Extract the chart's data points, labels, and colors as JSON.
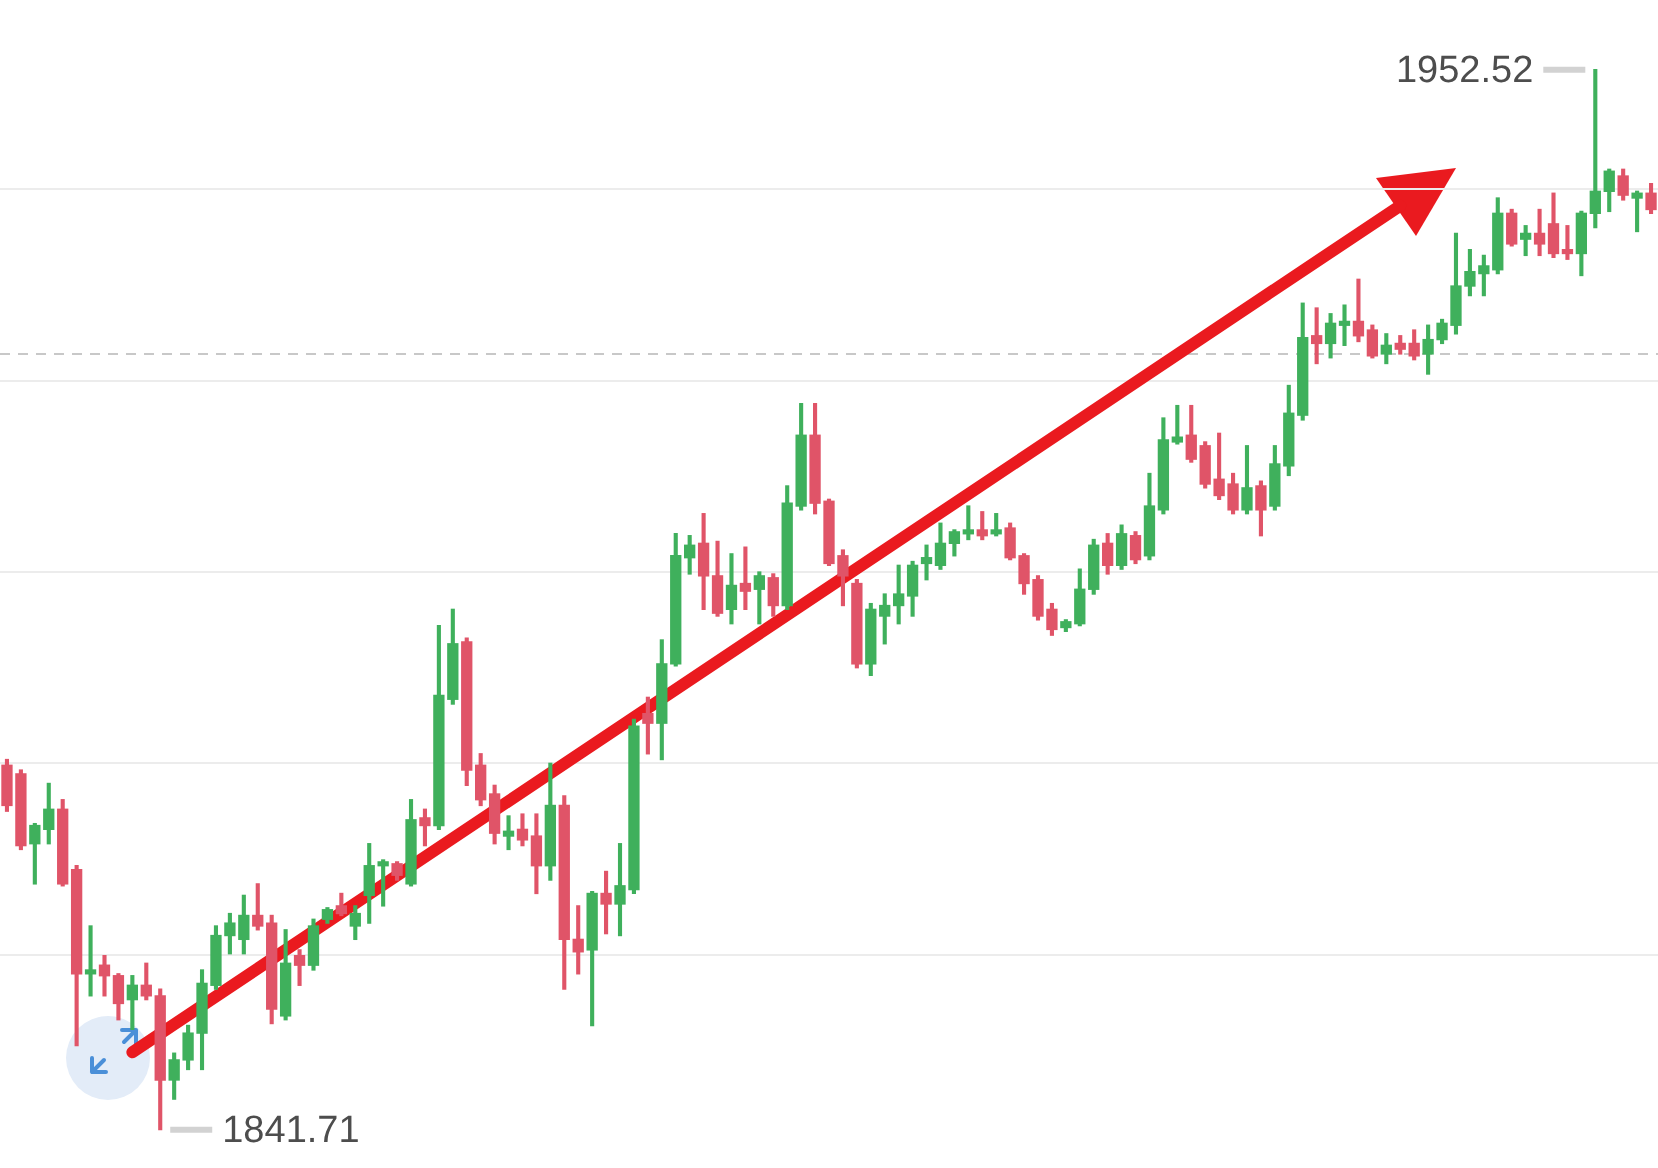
{
  "chart_data": {
    "type": "candlestick",
    "categories": [
      null,
      null,
      null,
      null,
      null,
      null,
      null,
      null,
      null,
      null,
      null,
      null,
      null,
      null,
      null,
      null,
      null,
      null,
      null,
      null,
      null,
      null,
      null,
      null,
      null,
      null,
      null,
      null,
      null,
      null,
      null,
      null,
      null,
      null,
      null,
      null,
      null,
      null,
      null,
      null,
      null,
      null,
      null,
      null,
      null,
      null,
      null,
      null,
      null,
      null,
      null,
      null,
      null,
      null,
      null,
      null,
      null,
      null,
      null,
      null,
      null,
      null,
      null,
      null,
      null,
      null,
      null,
      null,
      null,
      null,
      null,
      null,
      null,
      null,
      null,
      null,
      null,
      null,
      null,
      null,
      null,
      null,
      null,
      null,
      null,
      null,
      null,
      null,
      null,
      null,
      null,
      null,
      null,
      null,
      null,
      null,
      null,
      null,
      null,
      null,
      null,
      null,
      null,
      null,
      null,
      null,
      null,
      null,
      null,
      null,
      null,
      null,
      null,
      null,
      null,
      null,
      null,
      null,
      null
    ],
    "ohlc": [
      [
        1879.8,
        1880.4,
        1875.0,
        1875.6
      ],
      [
        1878.9,
        1879.3,
        1871.0,
        1871.4
      ],
      [
        1871.6,
        1873.7,
        1867.4,
        1873.5
      ],
      [
        1873.1,
        1877.9,
        1871.6,
        1875.2
      ],
      [
        1875.2,
        1876.2,
        1867.2,
        1867.4
      ],
      [
        1868.9,
        1869.3,
        1850.5,
        1858.0
      ],
      [
        1858.0,
        1863.0,
        1855.7,
        1858.4
      ],
      [
        1858.9,
        1859.9,
        1855.7,
        1857.8
      ],
      [
        1857.8,
        1858.0,
        1853.2,
        1854.9
      ],
      [
        1855.3,
        1857.8,
        1852.2,
        1856.8
      ],
      [
        1856.8,
        1859.1,
        1855.3,
        1855.7
      ],
      [
        1855.7,
        1856.4,
        1841.71,
        1846.9
      ],
      [
        1846.9,
        1849.7,
        1844.9,
        1849.0
      ],
      [
        1849.0,
        1852.6,
        1848.0,
        1851.8
      ],
      [
        1851.8,
        1858.4,
        1848.0,
        1857.0
      ],
      [
        1856.8,
        1863.0,
        1856.4,
        1862.0
      ],
      [
        1862.0,
        1864.3,
        1860.1,
        1863.3
      ],
      [
        1861.6,
        1866.2,
        1860.1,
        1864.1
      ],
      [
        1864.1,
        1867.4,
        1862.6,
        1863.0
      ],
      [
        1863.3,
        1864.1,
        1852.8,
        1854.3
      ],
      [
        1853.6,
        1862.6,
        1853.2,
        1859.1
      ],
      [
        1859.9,
        1860.5,
        1856.8,
        1858.9
      ],
      [
        1858.9,
        1863.7,
        1858.4,
        1863.0
      ],
      [
        1863.7,
        1864.9,
        1863.3,
        1864.7
      ],
      [
        1865.1,
        1866.4,
        1864.1,
        1864.3
      ],
      [
        1863.0,
        1865.1,
        1861.6,
        1864.3
      ],
      [
        1866.2,
        1871.6,
        1863.3,
        1869.3
      ],
      [
        1869.3,
        1869.9,
        1865.1,
        1869.7
      ],
      [
        1869.5,
        1869.7,
        1867.8,
        1868.3
      ],
      [
        1867.4,
        1876.2,
        1867.2,
        1874.1
      ],
      [
        1874.3,
        1875.2,
        1871.4,
        1873.5
      ],
      [
        1873.5,
        1894.4,
        1873.1,
        1887.1
      ],
      [
        1886.7,
        1896.1,
        1886.2,
        1892.5
      ],
      [
        1892.7,
        1893.1,
        1877.7,
        1879.3
      ],
      [
        1879.8,
        1881.0,
        1875.6,
        1876.2
      ],
      [
        1876.8,
        1877.7,
        1871.6,
        1872.7
      ],
      [
        1872.4,
        1874.5,
        1871.0,
        1872.9
      ],
      [
        1873.1,
        1874.7,
        1871.4,
        1872.0
      ],
      [
        1872.4,
        1874.7,
        1866.4,
        1869.3
      ],
      [
        1869.3,
        1880.0,
        1867.8,
        1875.6
      ],
      [
        1875.6,
        1876.6,
        1856.4,
        1861.6
      ],
      [
        1861.6,
        1865.1,
        1858.0,
        1860.3
      ],
      [
        1860.5,
        1866.6,
        1852.6,
        1866.4
      ],
      [
        1866.4,
        1868.7,
        1862.2,
        1865.3
      ],
      [
        1865.3,
        1871.6,
        1862.0,
        1867.2
      ],
      [
        1866.8,
        1884.6,
        1866.4,
        1883.9
      ],
      [
        1885.2,
        1886.9,
        1881.0,
        1884.2
      ],
      [
        1884.2,
        1892.9,
        1880.4,
        1890.4
      ],
      [
        1890.4,
        1904.0,
        1890.2,
        1901.7
      ],
      [
        1901.5,
        1903.8,
        1899.8,
        1902.8
      ],
      [
        1903.0,
        1906.1,
        1896.1,
        1899.6
      ],
      [
        1899.6,
        1903.2,
        1895.4,
        1895.7
      ],
      [
        1896.1,
        1901.9,
        1894.6,
        1898.6
      ],
      [
        1898.8,
        1902.6,
        1896.1,
        1898.0
      ],
      [
        1898.2,
        1900.0,
        1894.6,
        1899.6
      ],
      [
        1899.4,
        1899.8,
        1895.4,
        1896.5
      ],
      [
        1896.5,
        1909.0,
        1896.1,
        1907.2
      ],
      [
        1906.9,
        1917.6,
        1906.5,
        1914.3
      ],
      [
        1914.3,
        1917.6,
        1906.1,
        1907.2
      ],
      [
        1907.4,
        1907.6,
        1900.7,
        1900.9
      ],
      [
        1901.7,
        1902.3,
        1896.5,
        1899.6
      ],
      [
        1898.8,
        1899.2,
        1890.0,
        1890.4
      ],
      [
        1890.4,
        1896.7,
        1889.2,
        1896.1
      ],
      [
        1895.4,
        1897.7,
        1892.5,
        1896.5
      ],
      [
        1896.5,
        1900.7,
        1894.6,
        1897.7
      ],
      [
        1897.5,
        1901.1,
        1895.4,
        1900.7
      ],
      [
        1900.9,
        1902.8,
        1899.2,
        1901.5
      ],
      [
        1900.7,
        1905.1,
        1900.3,
        1903.0
      ],
      [
        1903.0,
        1904.4,
        1901.7,
        1904.2
      ],
      [
        1904.0,
        1906.9,
        1903.4,
        1904.4
      ],
      [
        1904.4,
        1906.3,
        1903.4,
        1903.8
      ],
      [
        1904.0,
        1906.1,
        1903.8,
        1904.4
      ],
      [
        1904.6,
        1905.1,
        1901.3,
        1901.5
      ],
      [
        1901.7,
        1901.9,
        1897.7,
        1898.8
      ],
      [
        1899.2,
        1899.6,
        1895.0,
        1895.4
      ],
      [
        1896.1,
        1896.7,
        1893.4,
        1894.0
      ],
      [
        1894.2,
        1895.0,
        1893.8,
        1894.8
      ],
      [
        1894.6,
        1900.3,
        1894.4,
        1898.2
      ],
      [
        1898.2,
        1903.4,
        1897.7,
        1902.8
      ],
      [
        1903.0,
        1904.0,
        1899.8,
        1900.7
      ],
      [
        1900.7,
        1904.9,
        1900.3,
        1904.0
      ],
      [
        1903.8,
        1904.2,
        1900.9,
        1901.3
      ],
      [
        1901.7,
        1910.3,
        1901.3,
        1906.9
      ],
      [
        1906.5,
        1916.1,
        1906.1,
        1913.8
      ],
      [
        1913.6,
        1917.4,
        1913.4,
        1914.1
      ],
      [
        1914.3,
        1917.4,
        1911.5,
        1911.8
      ],
      [
        1913.2,
        1913.6,
        1908.8,
        1909.2
      ],
      [
        1909.7,
        1914.5,
        1907.6,
        1908.0
      ],
      [
        1909.2,
        1910.3,
        1906.1,
        1906.5
      ],
      [
        1906.5,
        1913.2,
        1906.1,
        1908.8
      ],
      [
        1909.0,
        1909.5,
        1903.8,
        1906.5
      ],
      [
        1906.9,
        1913.2,
        1906.5,
        1911.3
      ],
      [
        1911.1,
        1919.5,
        1910.1,
        1916.6
      ],
      [
        1916.4,
        1928.1,
        1915.9,
        1924.5
      ],
      [
        1924.7,
        1927.6,
        1921.8,
        1923.9
      ],
      [
        1923.9,
        1927.0,
        1922.4,
        1926.0
      ],
      [
        1925.8,
        1927.9,
        1923.7,
        1926.2
      ],
      [
        1926.2,
        1930.6,
        1924.1,
        1924.7
      ],
      [
        1925.3,
        1925.8,
        1922.4,
        1922.6
      ],
      [
        1922.8,
        1924.9,
        1921.8,
        1923.7
      ],
      [
        1923.9,
        1924.7,
        1922.8,
        1923.3
      ],
      [
        1923.9,
        1925.3,
        1922.2,
        1922.6
      ],
      [
        1922.8,
        1925.8,
        1920.7,
        1924.3
      ],
      [
        1924.3,
        1926.4,
        1923.9,
        1926.0
      ],
      [
        1925.8,
        1935.4,
        1924.9,
        1929.9
      ],
      [
        1929.9,
        1933.7,
        1928.9,
        1931.4
      ],
      [
        1931.2,
        1933.1,
        1928.9,
        1932.0
      ],
      [
        1931.6,
        1939.1,
        1931.2,
        1937.5
      ],
      [
        1937.5,
        1937.9,
        1934.1,
        1934.3
      ],
      [
        1934.8,
        1936.2,
        1933.1,
        1935.4
      ],
      [
        1935.4,
        1937.9,
        1933.1,
        1934.3
      ],
      [
        1936.4,
        1939.6,
        1932.9,
        1933.3
      ],
      [
        1933.7,
        1936.2,
        1932.7,
        1933.3
      ],
      [
        1933.3,
        1937.7,
        1931.0,
        1937.5
      ],
      [
        1937.5,
        1952.52,
        1936.0,
        1939.8
      ],
      [
        1939.8,
        1942.1,
        1937.7,
        1941.9
      ],
      [
        1941.4,
        1942.1,
        1938.9,
        1939.4
      ],
      [
        1939.1,
        1939.8,
        1935.6,
        1939.6
      ],
      [
        1939.6,
        1940.6,
        1937.5,
        1937.9
      ]
    ],
    "colors": [
      "#e05468",
      "#e05468",
      "#3fb05c",
      "#3fb05c",
      "#e05468",
      "#e05468",
      "#3fb05c",
      "#e05468",
      "#e05468",
      "#3fb05c",
      "#e05468",
      "#e05468",
      "#3fb05c",
      "#3fb05c",
      "#3fb05c",
      "#3fb05c",
      "#3fb05c",
      "#3fb05c",
      "#e05468",
      "#e05468",
      "#3fb05c",
      "#e05468",
      "#3fb05c",
      "#3fb05c",
      "#e05468",
      "#3fb05c",
      "#3fb05c",
      "#3fb05c",
      "#e05468",
      "#3fb05c",
      "#e05468",
      "#3fb05c",
      "#3fb05c",
      "#e05468",
      "#e05468",
      "#e05468",
      "#3fb05c",
      "#e05468",
      "#e05468",
      "#3fb05c",
      "#e05468",
      "#e05468",
      "#3fb05c",
      "#e05468",
      "#3fb05c",
      "#3fb05c",
      "#e05468",
      "#3fb05c",
      "#3fb05c",
      "#3fb05c",
      "#e05468",
      "#e05468",
      "#3fb05c",
      "#e05468",
      "#3fb05c",
      "#e05468",
      "#3fb05c",
      "#3fb05c",
      "#e05468",
      "#e05468",
      "#e05468",
      "#e05468",
      "#3fb05c",
      "#3fb05c",
      "#3fb05c",
      "#3fb05c",
      "#3fb05c",
      "#3fb05c",
      "#3fb05c",
      "#3fb05c",
      "#e05468",
      "#3fb05c",
      "#e05468",
      "#e05468",
      "#e05468",
      "#e05468",
      "#3fb05c",
      "#3fb05c",
      "#3fb05c",
      "#e05468",
      "#3fb05c",
      "#e05468",
      "#3fb05c",
      "#3fb05c",
      "#3fb05c",
      "#e05468",
      "#e05468",
      "#e05468",
      "#e05468",
      "#3fb05c",
      "#e05468",
      "#3fb05c",
      "#3fb05c",
      "#3fb05c",
      "#e05468",
      "#3fb05c",
      "#3fb05c",
      "#e05468",
      "#e05468",
      "#3fb05c",
      "#e05468",
      "#e05468",
      "#3fb05c",
      "#3fb05c",
      "#3fb05c",
      "#3fb05c",
      "#3fb05c",
      "#3fb05c",
      "#e05468",
      "#3fb05c",
      "#e05468",
      "#e05468",
      "#e05468",
      "#3fb05c",
      "#3fb05c",
      "#3fb05c",
      "#e05468",
      "#3fb05c",
      "#e05468"
    ],
    "series": [
      {
        "type": "line",
        "color": "#ea1a1f",
        "values": [
          null,
          null,
          null,
          null,
          null,
          null,
          null,
          null,
          null,
          1849.8,
          null,
          null,
          null,
          null,
          null,
          null,
          null,
          null,
          null,
          null,
          null,
          null,
          null,
          null,
          null,
          null,
          null,
          null,
          null,
          null,
          null,
          null,
          null,
          null,
          null,
          null,
          null,
          null,
          null,
          null,
          null,
          null,
          null,
          null,
          null,
          null,
          null,
          null,
          null,
          null,
          null,
          null,
          null,
          null,
          null,
          null,
          null,
          null,
          null,
          null,
          null,
          null,
          null,
          null,
          null,
          null,
          null,
          null,
          null,
          null,
          null,
          null,
          null,
          null,
          null,
          null,
          null,
          null,
          null,
          null,
          null,
          null,
          null,
          null,
          null,
          null,
          null,
          null,
          null,
          null,
          null,
          null,
          null,
          null,
          null,
          null,
          null,
          null,
          null,
          null,
          1938.3,
          null,
          null,
          null,
          null,
          null,
          null,
          null,
          null,
          null,
          null,
          null,
          null,
          null,
          null,
          null,
          null,
          null,
          null
        ]
      }
    ],
    "ylim": [
      1837.7,
      1959.8
    ],
    "yticks": [
      {
        "value": 1860,
        "label": null
      },
      {
        "value": 1880,
        "label": null
      },
      {
        "value": 1900,
        "label": null
      },
      {
        "value": 1920,
        "label": null
      },
      {
        "value": 1940,
        "label": null
      }
    ],
    "grid": "y",
    "tick_labels": false,
    "ref_lines": [
      {
        "axis": "y",
        "value": 1922.8,
        "color": "#c8c8c8",
        "line_style": "dashed"
      }
    ],
    "annotations": [
      "1952.52",
      "1841.71"
    ]
  }
}
